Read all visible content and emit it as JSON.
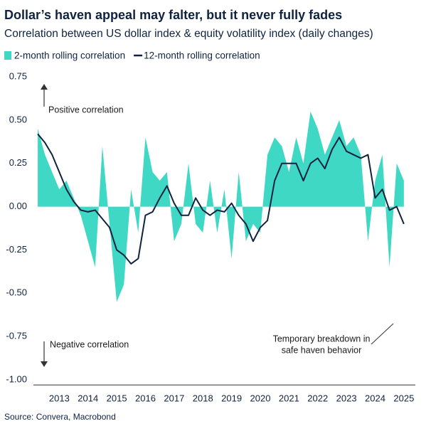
{
  "chart_data": {
    "type": "line",
    "title": "Dollar’s haven appeal may falter, but it never fully fades",
    "subtitle": "Correlation between US dollar index & equity volatility index (daily changes)",
    "source": "Source: Convera, Macrobond",
    "annotations": [
      "Positive correlation",
      "Negative correlation",
      "Temporary breakdown in",
      "safe haven behavior"
    ],
    "legend": "top-left",
    "grid": false,
    "x": [
      2012.75,
      2013,
      2013.25,
      2013.5,
      2013.75,
      2014,
      2014.25,
      2014.5,
      2014.75,
      2015,
      2015.25,
      2015.5,
      2015.75,
      2016,
      2016.25,
      2016.5,
      2016.75,
      2017,
      2017.25,
      2017.5,
      2017.75,
      2018,
      2018.25,
      2018.5,
      2018.75,
      2019,
      2019.25,
      2019.5,
      2019.75,
      2020,
      2020.25,
      2020.5,
      2020.75,
      2021,
      2021.25,
      2021.5,
      2021.75,
      2022,
      2022.25,
      2022.5,
      2022.75,
      2023,
      2023.25,
      2023.5,
      2023.75,
      2024,
      2024.25,
      2024.5,
      2024.75,
      2025,
      2025.25,
      2025.5
    ],
    "series": [
      {
        "name": "2-month rolling correlation",
        "type": "area",
        "color": "#3fd8c4",
        "values": [
          0.45,
          0.3,
          0.2,
          0.1,
          0.15,
          0.05,
          -0.05,
          -0.2,
          -0.35,
          0.35,
          -0.1,
          -0.55,
          -0.45,
          0.1,
          -0.15,
          0.4,
          0.2,
          0.15,
          0.2,
          -0.2,
          -0.1,
          0.25,
          -0.1,
          -0.15,
          0.15,
          -0.15,
          0.1,
          -0.3,
          0.2,
          -0.2,
          -0.1,
          -0.15,
          0.3,
          0.4,
          0.35,
          0.2,
          0.4,
          0.25,
          0.55,
          0.45,
          0.3,
          0.4,
          0.5,
          0.35,
          0.4,
          0.3,
          -0.2,
          0.15,
          0.3,
          -0.35,
          0.25,
          0.15
        ]
      },
      {
        "name": "12-month rolling correlation",
        "type": "line",
        "color": "#0f2340",
        "values": [
          0.42,
          0.37,
          0.3,
          0.2,
          0.1,
          0.03,
          -0.02,
          -0.03,
          -0.02,
          -0.07,
          -0.12,
          -0.25,
          -0.28,
          -0.33,
          -0.3,
          -0.05,
          -0.03,
          0.05,
          0.12,
          0.02,
          -0.05,
          -0.05,
          0.05,
          -0.02,
          -0.05,
          -0.02,
          -0.03,
          0.02,
          -0.05,
          -0.1,
          -0.2,
          -0.12,
          -0.08,
          0.15,
          0.25,
          0.25,
          0.25,
          0.15,
          0.25,
          0.28,
          0.22,
          0.33,
          0.4,
          0.32,
          0.3,
          0.28,
          0.3,
          0.05,
          0.1,
          -0.02,
          0.0,
          -0.1
        ]
      }
    ],
    "xlim": [
      2012.6,
      2025.9
    ],
    "xticks": [
      {
        "value": 2013.5,
        "label": "2013"
      },
      {
        "value": 2014.5,
        "label": "2014"
      },
      {
        "value": 2015.5,
        "label": "2015"
      },
      {
        "value": 2016.5,
        "label": "2016"
      },
      {
        "value": 2017.5,
        "label": "2017"
      },
      {
        "value": 2018.5,
        "label": "2018"
      },
      {
        "value": 2019.5,
        "label": "2019"
      },
      {
        "value": 2020.5,
        "label": "2020"
      },
      {
        "value": 2021.5,
        "label": "2021"
      },
      {
        "value": 2022.5,
        "label": "2022"
      },
      {
        "value": 2023.5,
        "label": "2023"
      },
      {
        "value": 2024.5,
        "label": "2024"
      },
      {
        "value": 2025.5,
        "label": "2025"
      }
    ],
    "ylim": [
      -1.03,
      0.78
    ],
    "yticks": [
      0.75,
      {
        "value": 0.5,
        "label": "0.50"
      },
      0.25,
      {
        "value": 0,
        "label": "0.00"
      },
      -0.25,
      {
        "value": -0.5,
        "label": "-0.50"
      },
      -0.75,
      {
        "value": -1,
        "label": "-1.00"
      }
    ]
  }
}
